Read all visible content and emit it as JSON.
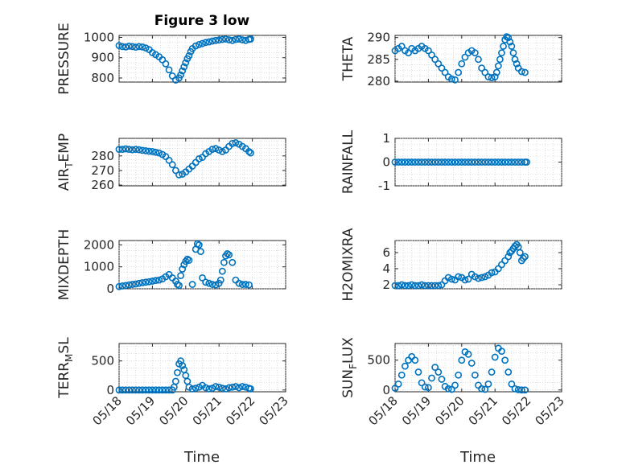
{
  "chart_data": {
    "type": "scatter",
    "title": "Figure 3 low",
    "x_tick_labels": [
      "05/18",
      "05/19",
      "05/20",
      "05/21",
      "05/22",
      "05/23"
    ],
    "xlabel": "Time",
    "marker_color": "#0072BD",
    "marker": "open-circle",
    "grid": true,
    "panels": [
      {
        "key": "pressure",
        "ylabel": "PRESSURE",
        "ylim": [
          780,
          1010
        ],
        "yticks": [
          800,
          900,
          1000
        ],
        "x": [
          0.0,
          0.1,
          0.2,
          0.3,
          0.4,
          0.5,
          0.6,
          0.7,
          0.8,
          0.9,
          1.0,
          1.1,
          1.2,
          1.3,
          1.4,
          1.5,
          1.6,
          1.7,
          1.8,
          1.85,
          1.9,
          1.95,
          2.0,
          2.05,
          2.1,
          2.15,
          2.2,
          2.3,
          2.4,
          2.5,
          2.6,
          2.7,
          2.8,
          2.9,
          3.0,
          3.1,
          3.2,
          3.3,
          3.4,
          3.5,
          3.6,
          3.7,
          3.8,
          3.9,
          3.95
        ],
        "y": [
          960,
          955,
          953,
          957,
          955,
          952,
          955,
          953,
          948,
          940,
          925,
          915,
          905,
          890,
          870,
          840,
          810,
          790,
          800,
          815,
          835,
          855,
          875,
          895,
          910,
          930,
          945,
          958,
          965,
          970,
          975,
          978,
          982,
          985,
          987,
          990,
          992,
          988,
          985,
          990,
          992,
          988,
          985,
          990,
          992
        ]
      },
      {
        "key": "theta",
        "ylabel": "THETA",
        "ylim": [
          279.8,
          290.5
        ],
        "yticks": [
          280,
          285,
          290
        ],
        "x": [
          0.0,
          0.1,
          0.2,
          0.3,
          0.4,
          0.5,
          0.6,
          0.7,
          0.8,
          0.9,
          1.0,
          1.1,
          1.2,
          1.3,
          1.4,
          1.5,
          1.6,
          1.7,
          1.8,
          1.9,
          2.0,
          2.1,
          2.2,
          2.3,
          2.4,
          2.5,
          2.6,
          2.7,
          2.8,
          2.9,
          3.0,
          3.05,
          3.1,
          3.15,
          3.2,
          3.25,
          3.3,
          3.35,
          3.4,
          3.45,
          3.5,
          3.55,
          3.6,
          3.65,
          3.7,
          3.8,
          3.9
        ],
        "y": [
          287,
          287.5,
          288,
          287,
          286.5,
          287.5,
          287,
          287.5,
          288,
          287.5,
          287,
          286,
          285,
          284,
          283,
          282,
          281,
          280.5,
          280.3,
          282,
          284,
          285.5,
          286.5,
          287,
          286.5,
          285,
          283,
          282,
          281,
          280.8,
          281,
          282,
          283.5,
          285,
          286.5,
          288,
          289.5,
          290.2,
          290,
          289,
          288,
          286.5,
          285,
          284,
          283,
          282.2,
          282
        ]
      },
      {
        "key": "air_temp",
        "ylabel": "AIR_TEMP",
        "ylim": [
          259.5,
          292
        ],
        "yticks": [
          260,
          270,
          280
        ],
        "x": [
          0.0,
          0.1,
          0.2,
          0.3,
          0.4,
          0.5,
          0.6,
          0.7,
          0.8,
          0.9,
          1.0,
          1.1,
          1.2,
          1.3,
          1.4,
          1.5,
          1.6,
          1.7,
          1.8,
          1.9,
          2.0,
          2.1,
          2.2,
          2.3,
          2.4,
          2.5,
          2.6,
          2.7,
          2.8,
          2.9,
          3.0,
          3.1,
          3.2,
          3.3,
          3.4,
          3.5,
          3.6,
          3.7,
          3.8,
          3.9,
          3.95
        ],
        "y": [
          284.5,
          284.5,
          284.8,
          284.5,
          284.2,
          284.5,
          284.2,
          283.8,
          283.5,
          283.2,
          283,
          282.5,
          282,
          281,
          279.5,
          277,
          274,
          270,
          267,
          267.5,
          269,
          271,
          273,
          275.5,
          278,
          279,
          281.5,
          283,
          284.5,
          285,
          284,
          283,
          284,
          286.5,
          288.5,
          289,
          288,
          286.5,
          285,
          283,
          282
        ]
      },
      {
        "key": "rainfall",
        "ylabel": "RAINFALL",
        "ylim": [
          -1,
          1
        ],
        "yticks": [
          -1,
          0,
          1
        ],
        "x": [
          0.0,
          0.1,
          0.2,
          0.3,
          0.4,
          0.5,
          0.6,
          0.7,
          0.8,
          0.9,
          1.0,
          1.1,
          1.2,
          1.3,
          1.4,
          1.5,
          1.6,
          1.7,
          1.8,
          1.9,
          2.0,
          2.1,
          2.2,
          2.3,
          2.4,
          2.5,
          2.6,
          2.7,
          2.8,
          2.9,
          3.0,
          3.1,
          3.2,
          3.3,
          3.4,
          3.5,
          3.6,
          3.7,
          3.8,
          3.9,
          3.95
        ],
        "y": [
          0,
          0,
          0,
          0,
          0,
          0,
          0,
          0,
          0,
          0,
          0,
          0,
          0,
          0,
          0,
          0,
          0,
          0,
          0,
          0,
          0,
          0,
          0,
          0,
          0,
          0,
          0,
          0,
          0,
          0,
          0,
          0,
          0,
          0,
          0,
          0,
          0,
          0,
          0,
          0,
          0
        ]
      },
      {
        "key": "mixdepth",
        "ylabel": "MIXDEPTH",
        "ylim": [
          0,
          2200
        ],
        "yticks": [
          0,
          1000,
          2000
        ],
        "x": [
          0.0,
          0.1,
          0.2,
          0.3,
          0.4,
          0.5,
          0.6,
          0.7,
          0.8,
          0.9,
          1.0,
          1.1,
          1.2,
          1.3,
          1.4,
          1.5,
          1.6,
          1.7,
          1.75,
          1.8,
          1.85,
          1.9,
          1.95,
          2.0,
          2.05,
          2.1,
          2.2,
          2.3,
          2.35,
          2.4,
          2.45,
          2.5,
          2.6,
          2.7,
          2.8,
          2.9,
          3.0,
          3.05,
          3.1,
          3.15,
          3.2,
          3.25,
          3.3,
          3.4,
          3.5,
          3.6,
          3.7,
          3.8,
          3.9
        ],
        "y": [
          100,
          130,
          150,
          180,
          200,
          220,
          250,
          280,
          300,
          320,
          350,
          380,
          400,
          450,
          550,
          650,
          500,
          350,
          200,
          150,
          600,
          900,
          1100,
          1250,
          1350,
          1300,
          200,
          1800,
          2050,
          2000,
          1700,
          500,
          300,
          250,
          200,
          180,
          250,
          400,
          800,
          1200,
          1500,
          1600,
          1550,
          1200,
          400,
          250,
          200,
          200,
          180
        ]
      },
      {
        "key": "h2omixra",
        "ylabel": "H2OMIXRA",
        "ylim": [
          1.5,
          7.5
        ],
        "yticks": [
          2,
          4,
          6
        ],
        "x": [
          0.0,
          0.1,
          0.2,
          0.3,
          0.4,
          0.5,
          0.6,
          0.7,
          0.8,
          0.9,
          1.0,
          1.1,
          1.2,
          1.3,
          1.4,
          1.5,
          1.6,
          1.7,
          1.8,
          1.9,
          2.0,
          2.1,
          2.2,
          2.3,
          2.4,
          2.5,
          2.6,
          2.7,
          2.8,
          2.9,
          3.0,
          3.1,
          3.2,
          3.3,
          3.4,
          3.45,
          3.5,
          3.55,
          3.6,
          3.65,
          3.7,
          3.75,
          3.8,
          3.85,
          3.9
        ],
        "y": [
          1.9,
          1.9,
          2.0,
          1.9,
          1.9,
          2.0,
          1.9,
          1.9,
          2.0,
          1.9,
          1.9,
          1.9,
          1.9,
          1.9,
          2.0,
          2.5,
          2.9,
          2.7,
          2.6,
          3.0,
          2.9,
          2.6,
          2.7,
          3.3,
          3.0,
          2.8,
          2.9,
          3.0,
          3.2,
          3.5,
          3.6,
          4.0,
          4.5,
          5.0,
          5.5,
          6.0,
          6.2,
          6.5,
          6.8,
          7.0,
          6.7,
          6.0,
          5.0,
          5.3,
          5.5
        ]
      },
      {
        "key": "terr_msl",
        "ylabel": "TERR_MSL",
        "ylim": [
          -30,
          800
        ],
        "yticks": [
          0,
          500
        ],
        "x": [
          0.0,
          0.1,
          0.2,
          0.3,
          0.4,
          0.5,
          0.6,
          0.7,
          0.8,
          0.9,
          1.0,
          1.1,
          1.2,
          1.3,
          1.4,
          1.5,
          1.6,
          1.65,
          1.7,
          1.75,
          1.8,
          1.85,
          1.9,
          1.95,
          2.0,
          2.05,
          2.1,
          2.2,
          2.3,
          2.4,
          2.5,
          2.6,
          2.7,
          2.8,
          2.9,
          3.0,
          3.1,
          3.2,
          3.3,
          3.4,
          3.5,
          3.6,
          3.7,
          3.8,
          3.9,
          3.95
        ],
        "y": [
          0,
          0,
          0,
          0,
          0,
          0,
          0,
          0,
          0,
          0,
          0,
          0,
          0,
          0,
          0,
          0,
          0,
          50,
          150,
          300,
          450,
          500,
          420,
          350,
          250,
          150,
          50,
          20,
          30,
          50,
          80,
          40,
          20,
          30,
          60,
          50,
          30,
          20,
          40,
          50,
          60,
          40,
          60,
          50,
          30,
          20
        ]
      },
      {
        "key": "sun_flux",
        "ylabel": "SUN_FLUX",
        "ylim": [
          -30,
          780
        ],
        "yticks": [
          0,
          500
        ],
        "x": [
          0.0,
          0.1,
          0.2,
          0.3,
          0.4,
          0.5,
          0.6,
          0.7,
          0.8,
          0.9,
          1.0,
          1.1,
          1.2,
          1.3,
          1.4,
          1.5,
          1.6,
          1.7,
          1.8,
          1.9,
          2.0,
          2.1,
          2.2,
          2.3,
          2.4,
          2.5,
          2.6,
          2.7,
          2.8,
          2.9,
          3.0,
          3.1,
          3.2,
          3.3,
          3.4,
          3.5,
          3.6,
          3.7,
          3.8,
          3.9
        ],
        "y": [
          30,
          100,
          250,
          400,
          500,
          560,
          500,
          300,
          120,
          50,
          40,
          200,
          380,
          300,
          180,
          60,
          20,
          10,
          80,
          250,
          500,
          640,
          600,
          450,
          250,
          80,
          20,
          10,
          100,
          300,
          550,
          700,
          650,
          500,
          300,
          100,
          20,
          5,
          0,
          0
        ]
      }
    ]
  }
}
